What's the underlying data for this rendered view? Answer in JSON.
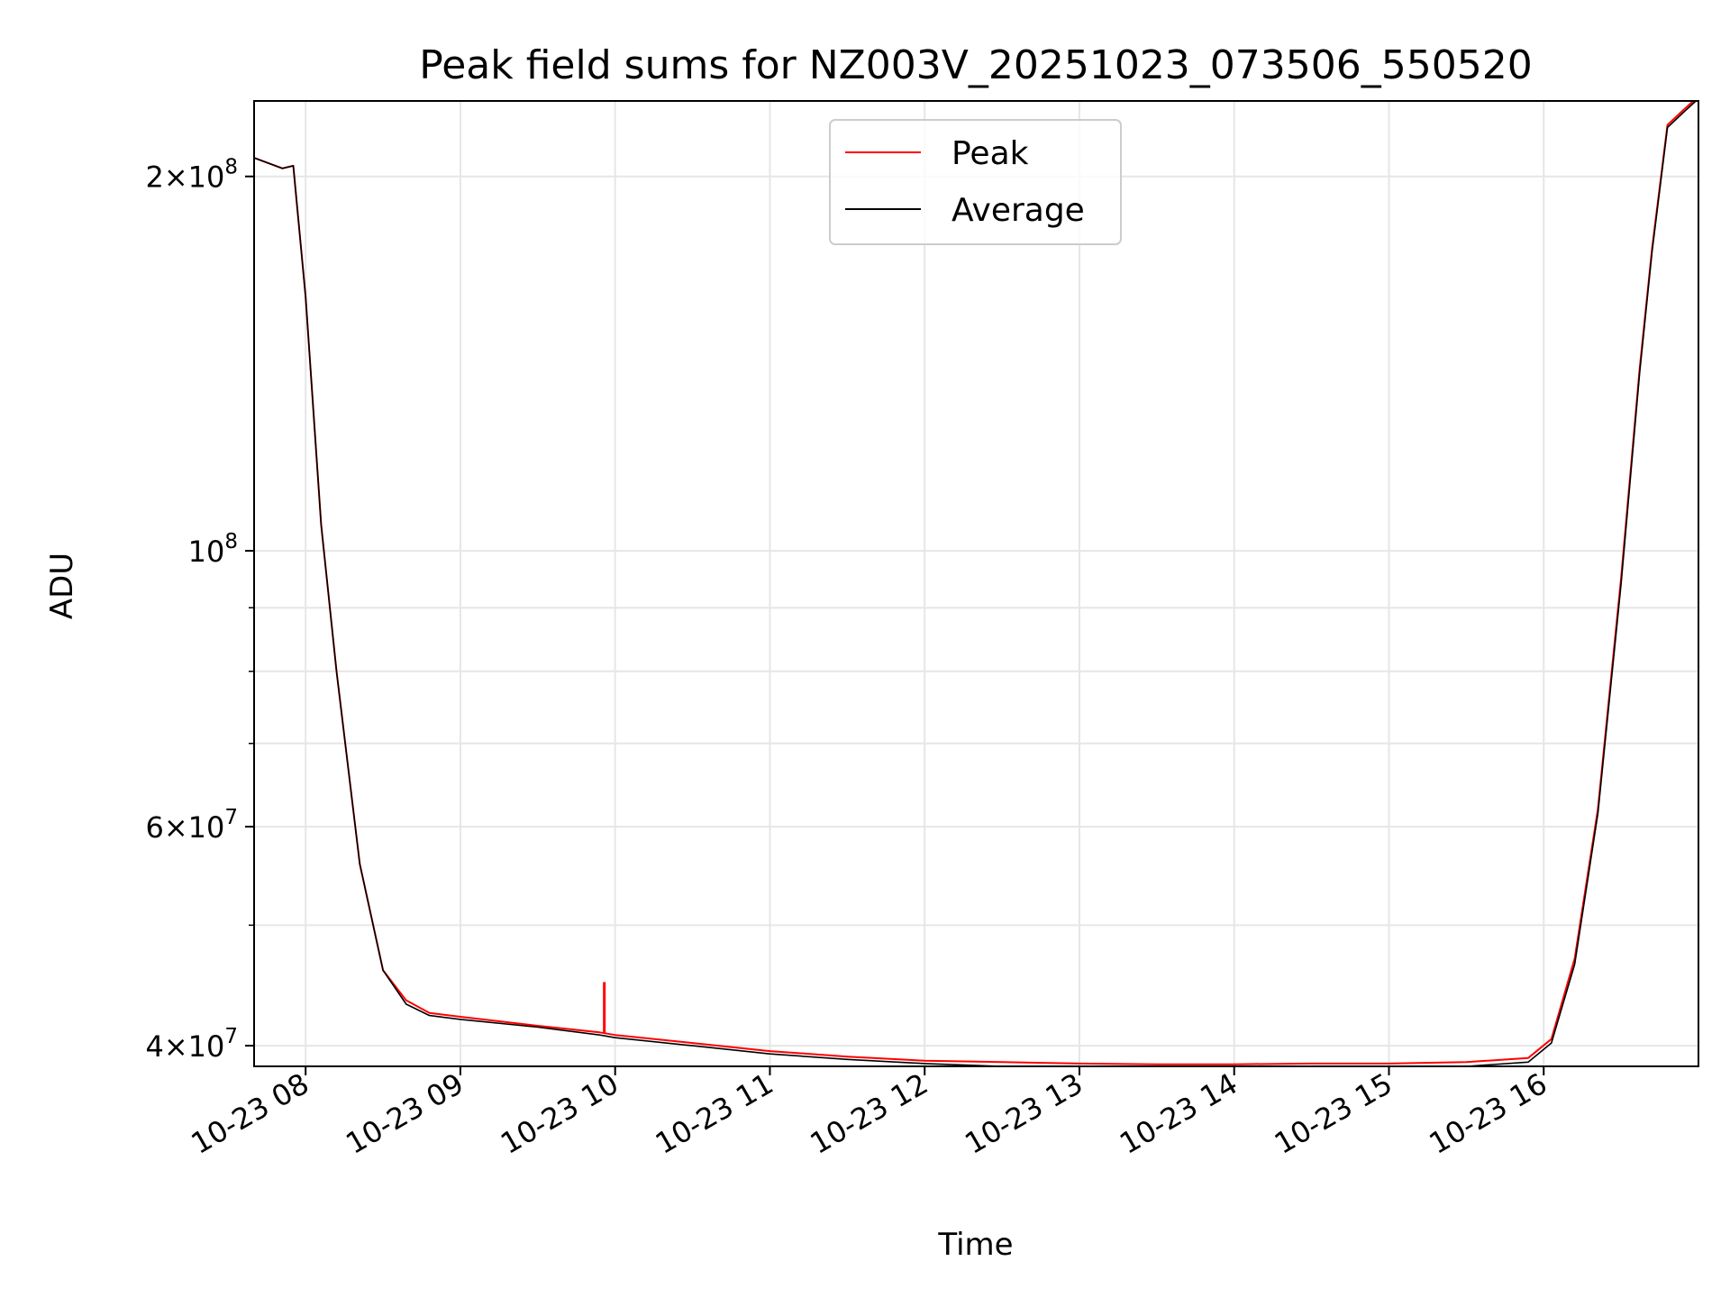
{
  "chart_data": {
    "type": "line",
    "title": "Peak field sums for NZ003V_20251023_073506_550520",
    "xlabel": "Time",
    "ylabel": "ADU",
    "yscale": "log",
    "ylim": [
      38500000,
      230000000
    ],
    "xlim_hours": [
      7.667,
      17.0
    ],
    "grid": true,
    "legend_position": "upper-center",
    "x_ticks": [
      {
        "value": 8,
        "label": "10-23 08"
      },
      {
        "value": 9,
        "label": "10-23 09"
      },
      {
        "value": 10,
        "label": "10-23 10"
      },
      {
        "value": 11,
        "label": "10-23 11"
      },
      {
        "value": 12,
        "label": "10-23 12"
      },
      {
        "value": 13,
        "label": "10-23 13"
      },
      {
        "value": 14,
        "label": "10-23 14"
      },
      {
        "value": 15,
        "label": "10-23 15"
      },
      {
        "value": 16,
        "label": "10-23 16"
      }
    ],
    "y_ticks": [
      {
        "value": 40000000,
        "mantissa": "4",
        "exponent": "7"
      },
      {
        "value": 60000000,
        "mantissa": "6",
        "exponent": "7"
      },
      {
        "value": 100000000,
        "mantissa": "",
        "exponent": "8"
      },
      {
        "value": 200000000,
        "mantissa": "2",
        "exponent": "8"
      }
    ],
    "y_minor_ticks": [
      50000000,
      70000000,
      80000000,
      90000000
    ],
    "series": [
      {
        "name": "Peak",
        "color": "#ff0000",
        "x_hours": [
          7.667,
          7.85,
          7.92,
          8.0,
          8.1,
          8.2,
          8.35,
          8.5,
          8.65,
          8.8,
          9.0,
          9.5,
          9.9,
          10.0,
          10.5,
          11.0,
          11.5,
          12.0,
          12.5,
          13.0,
          13.5,
          14.0,
          14.5,
          15.0,
          15.5,
          15.9,
          16.05,
          16.2,
          16.35,
          16.5,
          16.62,
          16.7,
          16.8,
          16.9,
          17.0
        ],
        "values": [
          207000000,
          203000000,
          204000000,
          160000000,
          105000000,
          80000000,
          56000000,
          46000000,
          43500000,
          42500000,
          42200000,
          41500000,
          41000000,
          40800000,
          40200000,
          39600000,
          39200000,
          38900000,
          38800000,
          38700000,
          38650000,
          38650000,
          38700000,
          38700000,
          38800000,
          39100000,
          40500000,
          47000000,
          62000000,
          95000000,
          140000000,
          175000000,
          220000000,
          226000000,
          232000000
        ],
        "spike": {
          "x_hours": 9.93,
          "value": 45000000
        }
      },
      {
        "name": "Average",
        "color": "#000000",
        "x_hours": [
          7.667,
          7.85,
          7.92,
          8.0,
          8.1,
          8.2,
          8.35,
          8.5,
          8.65,
          8.8,
          9.0,
          9.5,
          9.9,
          10.0,
          10.5,
          11.0,
          11.5,
          12.0,
          12.5,
          13.0,
          13.5,
          14.0,
          14.5,
          15.0,
          15.5,
          15.9,
          16.05,
          16.2,
          16.35,
          16.5,
          16.62,
          16.7,
          16.8,
          16.9,
          17.0
        ],
        "values": [
          207000000,
          203000000,
          204000000,
          160000000,
          105000000,
          80000000,
          56000000,
          46000000,
          43200000,
          42300000,
          42000000,
          41400000,
          40800000,
          40600000,
          40000000,
          39400000,
          39000000,
          38700000,
          38500000,
          38400000,
          38350000,
          38300000,
          38350000,
          38400000,
          38500000,
          38800000,
          40200000,
          46500000,
          61500000,
          94000000,
          139000000,
          174000000,
          219000000,
          225000000,
          231000000
        ]
      }
    ]
  }
}
